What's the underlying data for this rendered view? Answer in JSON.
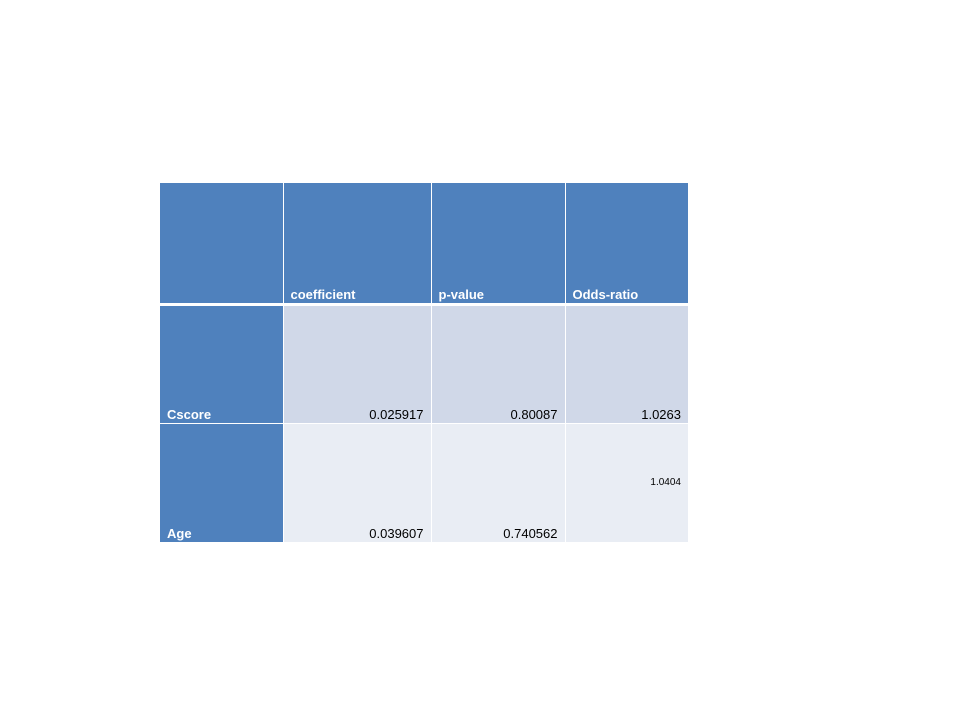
{
  "table": {
    "header": {
      "corner": "",
      "columns": [
        "coefficient",
        "p-value",
        "Odds-ratio"
      ]
    },
    "rows": [
      {
        "label": "Cscore",
        "coefficient": "0.025917",
        "p_value": "0.80087",
        "odds_ratio": "1.0263"
      },
      {
        "label": "Age",
        "coefficient": "0.039607",
        "p_value": "0.740562",
        "odds_ratio": "1.0404"
      }
    ],
    "colors": {
      "header_fill": "#4f81bd",
      "row_odd_fill": "#d0d8e8",
      "row_even_fill": "#e9edf4"
    }
  }
}
